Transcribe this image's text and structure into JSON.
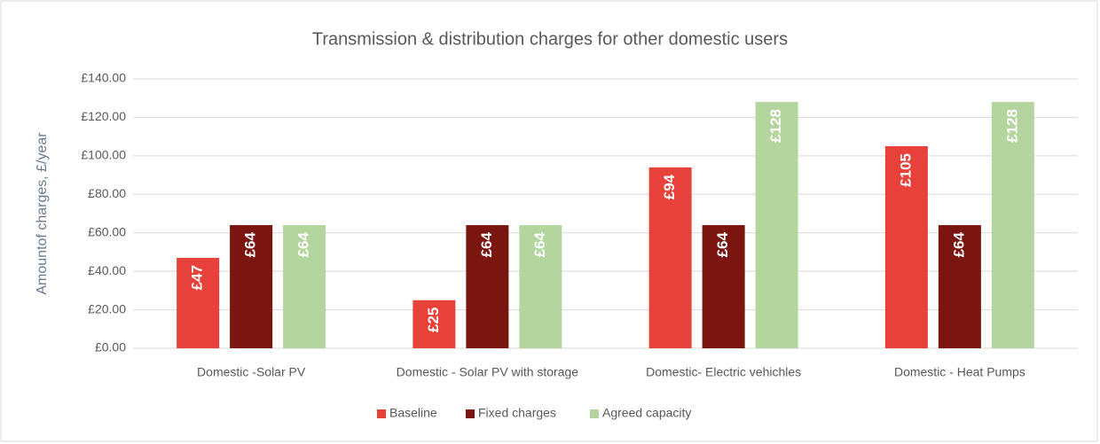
{
  "chart_data": {
    "type": "bar",
    "title": "Transmission & distribution charges for other domestic users",
    "y_label": "Amountof charges, £/year",
    "categories": [
      "Domestic -Solar PV",
      "Domestic - Solar PV with storage",
      "Domestic- Electric vehichles",
      "Domestic - Heat Pumps"
    ],
    "series": [
      {
        "name": "Baseline",
        "color": "#e8413a",
        "values": [
          47,
          25,
          94,
          105
        ],
        "value_labels": [
          "£47",
          "£25",
          "£94",
          "£105"
        ]
      },
      {
        "name": "Fixed charges",
        "color": "#7b1510",
        "values": [
          64,
          64,
          64,
          64
        ],
        "value_labels": [
          "£64",
          "£64",
          "£64",
          "£64"
        ]
      },
      {
        "name": "Agreed capacity",
        "color": "#b5d59e",
        "values": [
          64,
          64,
          128,
          128
        ],
        "value_labels": [
          "£64",
          "£64",
          "£128",
          "£128"
        ]
      }
    ],
    "ylim": [
      0,
      140
    ],
    "yticks": [
      {
        "value": 0,
        "label": "£0.00"
      },
      {
        "value": 20,
        "label": "£20.00"
      },
      {
        "value": 40,
        "label": "£40.00"
      },
      {
        "value": 60,
        "label": "£60.00"
      },
      {
        "value": 80,
        "label": "£80.00"
      },
      {
        "value": 100,
        "label": "£100.00"
      },
      {
        "value": 120,
        "label": "£120.00"
      },
      {
        "value": 140,
        "label": "£140.00"
      }
    ],
    "grid": true,
    "legend": "bottom"
  }
}
